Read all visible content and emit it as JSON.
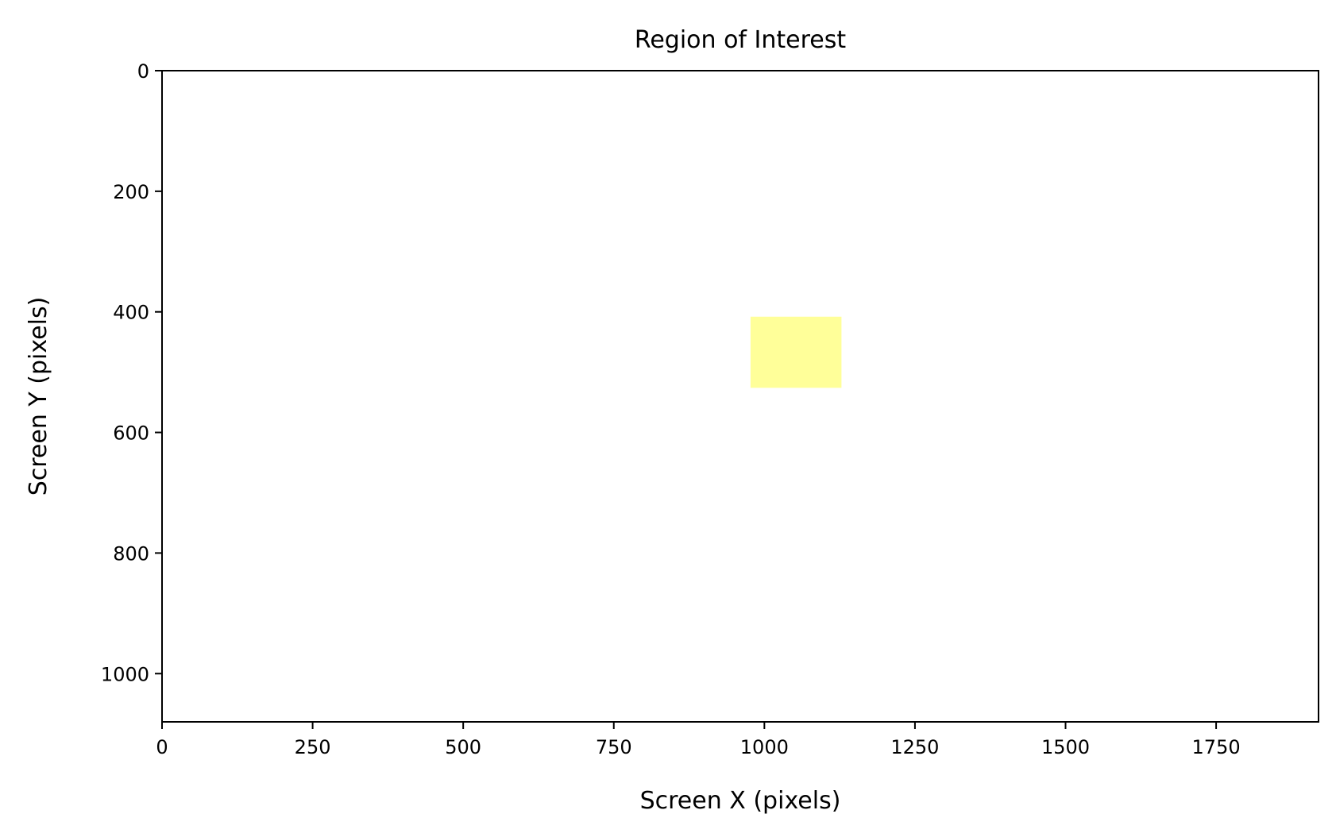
{
  "chart_data": {
    "type": "heatmap",
    "title": "Region of Interest",
    "xlabel": "Screen X (pixels)",
    "ylabel": "Screen Y (pixels)",
    "xlim": [
      0,
      1920
    ],
    "ylim": [
      1080,
      0
    ],
    "y_axis_inverted": true,
    "grid": false,
    "x_ticks": [
      0,
      250,
      500,
      750,
      1000,
      1250,
      1500,
      1750
    ],
    "x_tick_labels": [
      "0",
      "250",
      "500",
      "750",
      "1000",
      "1250",
      "1500",
      "1750"
    ],
    "y_ticks": [
      0,
      200,
      400,
      600,
      800,
      1000
    ],
    "y_tick_labels": [
      "0",
      "200",
      "400",
      "600",
      "800",
      "1000"
    ],
    "regions": [
      {
        "x0": 977,
        "x1": 1128,
        "y0": 408,
        "y1": 526,
        "color": "#ffff99"
      }
    ],
    "colors": {
      "region": "#ffff99",
      "axes": "#000000",
      "background": "#ffffff"
    }
  }
}
